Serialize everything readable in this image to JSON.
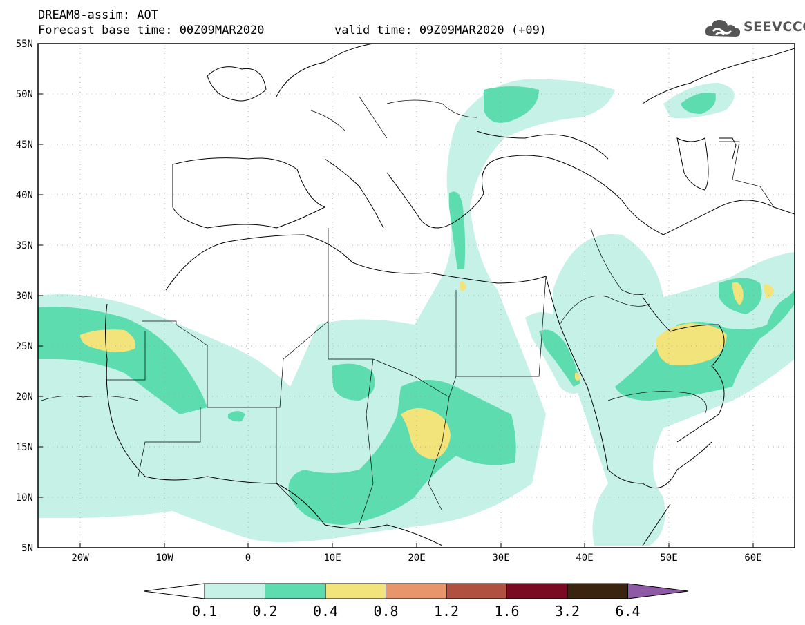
{
  "header": {
    "title": "DREAM8-assim: AOT",
    "base_time": "Forecast base time: 00Z09MAR2020",
    "valid_time": "valid time: 09Z09MAR2020 (+09)"
  },
  "logo": {
    "text": "SEEVCCC",
    "icon": "cloud-icon"
  },
  "map": {
    "lat_labels": [
      "55N",
      "50N",
      "45N",
      "40N",
      "35N",
      "30N",
      "25N",
      "20N",
      "15N",
      "10N",
      "5N"
    ],
    "lon_labels": [
      "20W",
      "10W",
      "0",
      "10E",
      "20E",
      "30E",
      "40E",
      "50E",
      "60E"
    ],
    "lat_range": [
      5,
      55
    ],
    "lon_range": [
      -25,
      65
    ],
    "grid": "dotted"
  },
  "colorbar": {
    "labels": [
      "0.1",
      "0.2",
      "0.4",
      "0.8",
      "1.2",
      "1.6",
      "3.2",
      "6.4"
    ],
    "colors": [
      "#ffffff",
      "#c6f1e6",
      "#5ddcb0",
      "#f2e47a",
      "#e9956b",
      "#b05040",
      "#7a0a22",
      "#3a2410",
      "#8e5aa5"
    ]
  },
  "colors": {
    "band1": "#c6f1e6",
    "band2": "#5ddcb0",
    "band3": "#f2e47a"
  }
}
